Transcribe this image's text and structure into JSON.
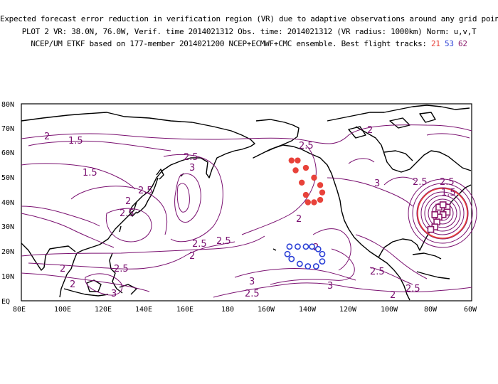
{
  "header": {
    "line1": "Expected forecast error reduction in verification region (VR) due to adaptive observations around any grid point.",
    "line2": "PLOT 2 VR: 38.0N, 76.0W, Verif. time 2014021312 Obs. time: 2014021312 (VR radius: 1000km) Norm: u,v,T",
    "line3_prefix": "NCEP/UM ETKF based on 177-member 2014021200 NCEP+ECMWF+CMC ensemble. Best flight tracks:",
    "track_ids": [
      "21",
      "53",
      "62"
    ]
  },
  "map": {
    "y_ticks": [
      "EQ",
      "10N",
      "20N",
      "30N",
      "40N",
      "50N",
      "60N",
      "70N",
      "80N"
    ],
    "x_ticks": [
      "80E",
      "100E",
      "120E",
      "140E",
      "160E",
      "180",
      "160W",
      "140W",
      "120W",
      "100W",
      "80W",
      "60W"
    ],
    "contour_labels": [
      "2",
      "1.5",
      "1.5",
      "2.5",
      "3",
      "2.5",
      "2.5",
      "2",
      "2.5",
      "2.5",
      "2",
      "2.5",
      "3",
      "2",
      "2",
      "2.5",
      "3",
      "2.5",
      "2",
      "3",
      "2.5",
      "2",
      "2.5",
      "3",
      "2.5",
      "2.5",
      "2",
      "1.5",
      "2"
    ],
    "colors": {
      "contour": "#7a1070",
      "track21": "#e8423a",
      "track53": "#2a3fd6",
      "track62": "#8b1a6b",
      "vr_circle": "#e8423a"
    },
    "tracks": {
      "t21": [
        [
          148,
          57
        ],
        [
          146,
          53
        ],
        [
          143,
          48
        ],
        [
          141,
          43
        ],
        [
          140,
          40
        ],
        [
          137,
          40
        ],
        [
          134,
          41
        ],
        [
          133,
          44
        ],
        [
          134,
          47
        ],
        [
          137,
          50
        ],
        [
          141,
          54
        ],
        [
          145,
          57
        ]
      ],
      "t53": [
        [
          149,
          22
        ],
        [
          145,
          22
        ],
        [
          141,
          22
        ],
        [
          138,
          22
        ],
        [
          135,
          21
        ],
        [
          133,
          19
        ],
        [
          133,
          16
        ],
        [
          136,
          14
        ],
        [
          140,
          14
        ],
        [
          144,
          15
        ],
        [
          148,
          17
        ],
        [
          150,
          19
        ]
      ],
      "t62": [
        [
          72,
          38
        ],
        [
          72,
          36
        ],
        [
          74,
          35
        ],
        [
          76,
          34
        ],
        [
          77,
          32
        ],
        [
          78,
          30
        ],
        [
          80,
          29
        ],
        [
          78,
          35
        ],
        [
          76,
          38
        ],
        [
          74,
          39
        ]
      ]
    }
  }
}
